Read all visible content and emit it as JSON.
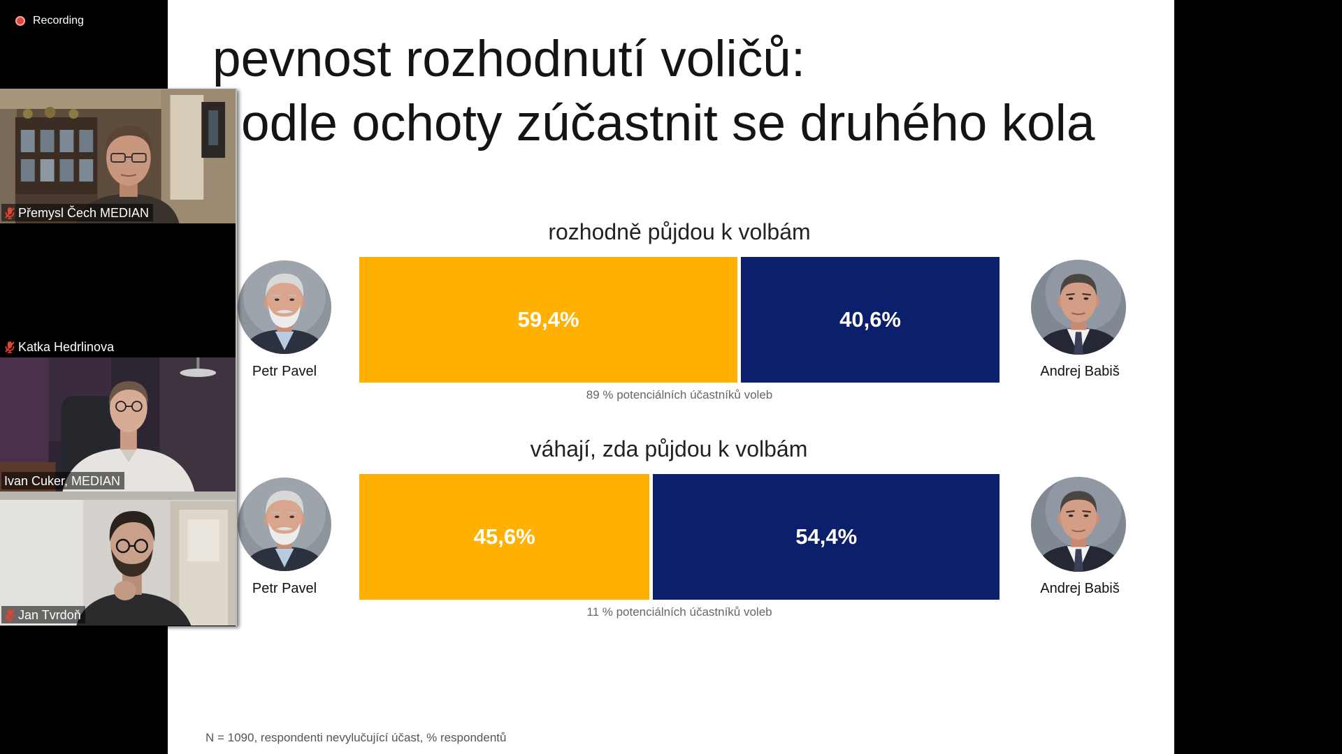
{
  "meeting": {
    "recording_label": "Recording",
    "recording_icon": "record-dot-icon",
    "muted_icon": "mic-muted-icon",
    "active_speaker_color": "#b6d36a",
    "participants": [
      {
        "name": "Přemysl Čech MEDIAN",
        "muted": true
      },
      {
        "name": "Katka Hedrlinova",
        "muted": true
      },
      {
        "name": "Ivan Cuker, MEDIAN",
        "muted": false,
        "active_speaker": true
      },
      {
        "name": "Jan Tvrdoň",
        "muted": true
      }
    ]
  },
  "slide": {
    "title_line1": "pevnost rozhodnutí voličů:",
    "title_line2": "odle ochoty zúčastnit se druhého kola",
    "footnote": "N = 1090, respondenti nevylučující účast, % respondentů"
  },
  "chart_data": [
    {
      "type": "bar",
      "stacked": true,
      "orientation": "horizontal",
      "title": "rozhodně půjdou k volbám",
      "categories": [
        "Petr Pavel",
        "Andrej Babiš"
      ],
      "values": [
        59.4,
        40.6
      ],
      "value_labels": [
        "59,4%",
        "40,6%"
      ],
      "note": "89 % potenciálních účastníků voleb",
      "colors": [
        "#FFB000",
        "#0C1F6A"
      ]
    },
    {
      "type": "bar",
      "stacked": true,
      "orientation": "horizontal",
      "title": "váhají, zda půjdou k volbám",
      "categories": [
        "Petr Pavel",
        "Andrej Babiš"
      ],
      "values": [
        45.6,
        54.4
      ],
      "value_labels": [
        "45,6%",
        "54,4%"
      ],
      "note": "11 % potenciálních účastníků voleb",
      "colors": [
        "#FFB000",
        "#0C1F6A"
      ]
    }
  ]
}
